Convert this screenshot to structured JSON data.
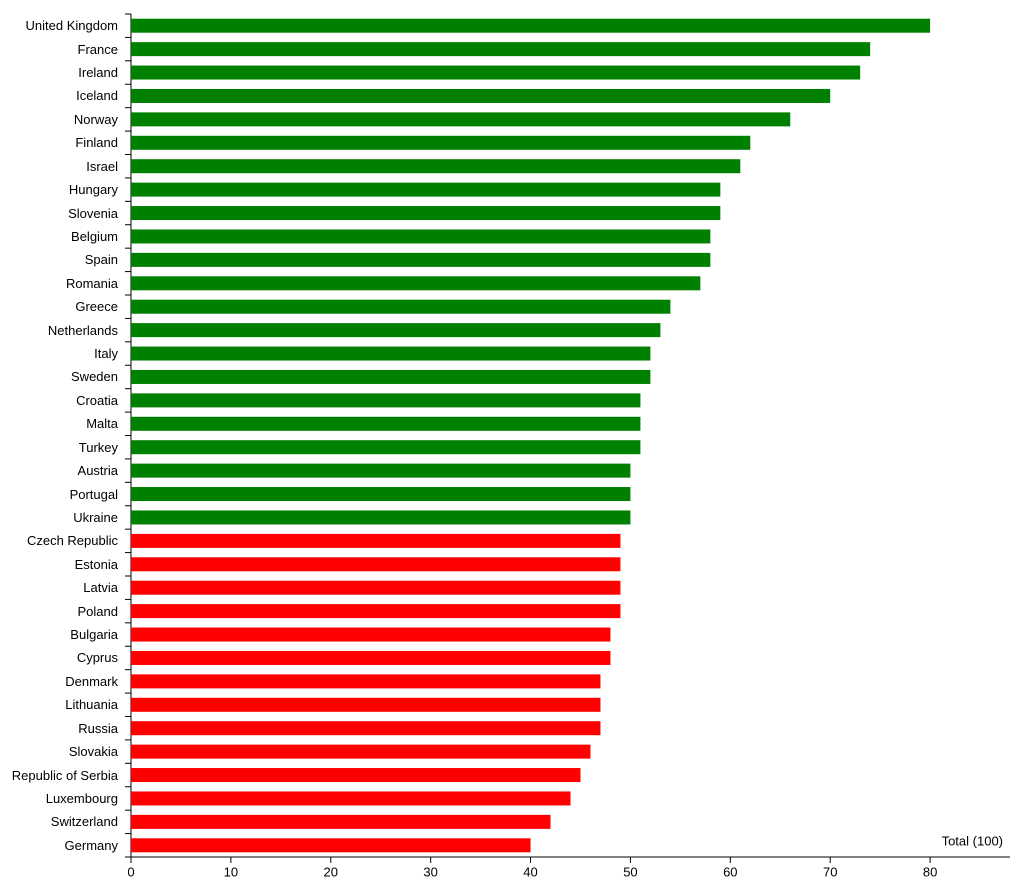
{
  "chart_data": {
    "type": "bar",
    "orientation": "horizontal",
    "x_label": "Total (100)",
    "categories": [
      "United Kingdom",
      "France",
      "Ireland",
      "Iceland",
      "Norway",
      "Finland",
      "Israel",
      "Hungary",
      "Slovenia",
      "Belgium",
      "Spain",
      "Romania",
      "Greece",
      "Netherlands",
      "Italy",
      "Sweden",
      "Croatia",
      "Malta",
      "Turkey",
      "Austria",
      "Portugal",
      "Ukraine",
      "Czech Republic",
      "Estonia",
      "Latvia",
      "Poland",
      "Bulgaria",
      "Cyprus",
      "Denmark",
      "Lithuania",
      "Russia",
      "Slovakia",
      "Republic of Serbia",
      "Luxembourg",
      "Switzerland",
      "Germany"
    ],
    "values": [
      80,
      74,
      73,
      70,
      66,
      62,
      61,
      59,
      59,
      58,
      58,
      57,
      54,
      53,
      52,
      52,
      51,
      51,
      51,
      50,
      50,
      50,
      49,
      49,
      49,
      49,
      48,
      48,
      47,
      47,
      47,
      46,
      45,
      44,
      42,
      40
    ],
    "colors": [
      "#008000",
      "#008000",
      "#008000",
      "#008000",
      "#008000",
      "#008000",
      "#008000",
      "#008000",
      "#008000",
      "#008000",
      "#008000",
      "#008000",
      "#008000",
      "#008000",
      "#008000",
      "#008000",
      "#008000",
      "#008000",
      "#008000",
      "#008000",
      "#008000",
      "#008000",
      "#ff0000",
      "#ff0000",
      "#ff0000",
      "#ff0000",
      "#ff0000",
      "#ff0000",
      "#ff0000",
      "#ff0000",
      "#ff0000",
      "#ff0000",
      "#ff0000",
      "#ff0000",
      "#ff0000",
      "#ff0000"
    ],
    "xlim": [
      0,
      88
    ],
    "xticks": [
      0,
      10,
      20,
      30,
      40,
      50,
      60,
      70,
      80
    ]
  }
}
